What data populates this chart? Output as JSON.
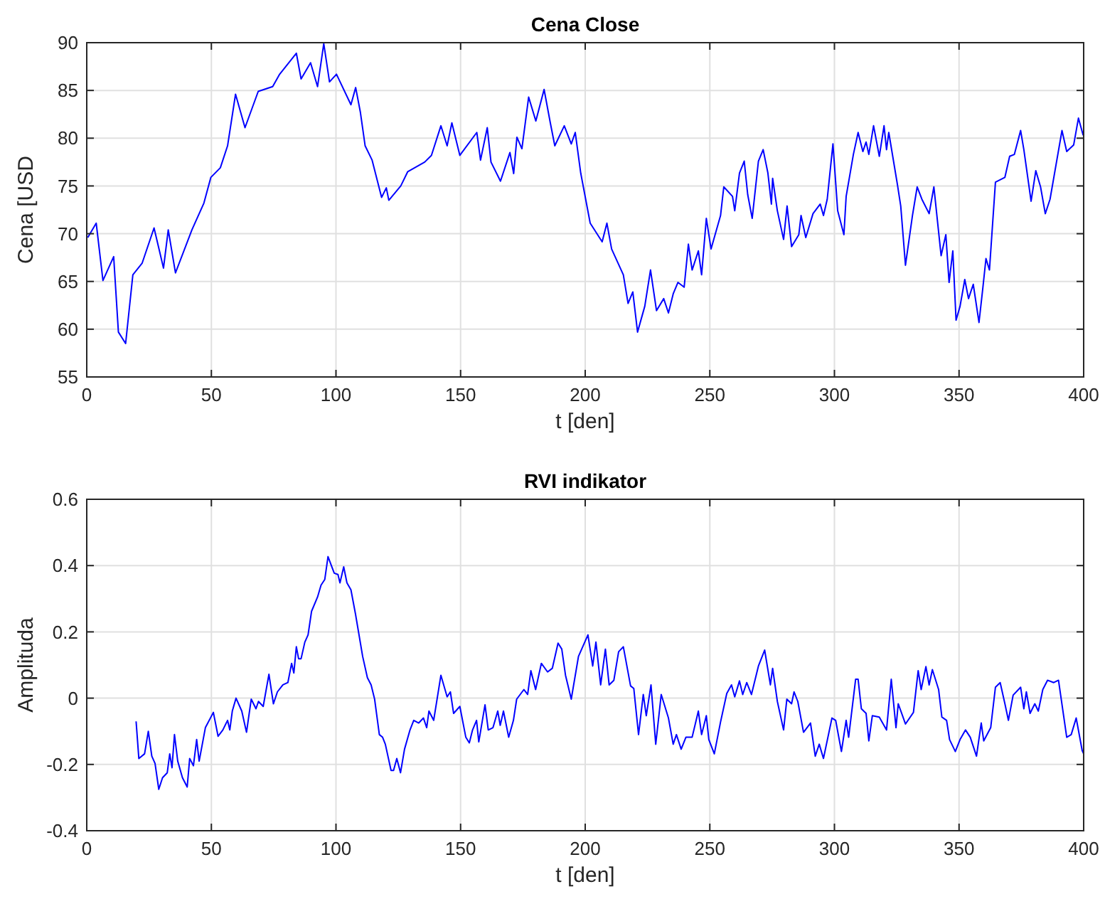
{
  "chart_data": [
    {
      "type": "line",
      "title": "Cena Close",
      "xlabel": "t [den]",
      "ylabel": "Cena [USD",
      "xlim": [
        0,
        400
      ],
      "ylim": [
        55,
        90
      ],
      "xticks": [
        0,
        50,
        100,
        150,
        200,
        250,
        300,
        350,
        400
      ],
      "yticks": [
        55,
        60,
        65,
        70,
        75,
        80,
        85,
        90
      ],
      "grid": true,
      "series": [
        {
          "color": "#0000ff",
          "x": [
            0.4,
            3.8,
            6.5,
            10.8,
            12.7,
            15.6,
            18.5,
            22.2,
            27,
            30.8,
            32.7,
            35.6,
            42.2,
            47,
            49.8,
            53.6,
            56.5,
            59.7,
            63.5,
            68.8,
            74.6,
            77.4,
            84.1,
            86,
            89.8,
            92.6,
            95.1,
            97.4,
            100.2,
            106,
            107.9,
            109.8,
            111.7,
            114.5,
            118.3,
            120.2,
            121.2,
            126,
            128.8,
            135.6,
            138.3,
            142.1,
            144.6,
            146.5,
            149.7,
            156.5,
            158,
            160.7,
            162.2,
            166,
            169.8,
            171.3,
            172.6,
            174.6,
            177.3,
            180.2,
            183.5,
            186,
            187.8,
            191.6,
            194.4,
            196,
            198.2,
            202,
            206.8,
            208.7,
            210.6,
            215.3,
            217.2,
            219.1,
            221,
            223.9,
            226.2,
            228.6,
            231.5,
            233.4,
            235.3,
            237.2,
            239.7,
            241.4,
            242.9,
            245.4,
            246.7,
            248.6,
            250.5,
            254.3,
            255.6,
            259.1,
            260,
            261.9,
            263.8,
            265.2,
            267,
            269.5,
            271.4,
            273.3,
            274.7,
            275.2,
            277.1,
            279.6,
            281,
            282.8,
            285.7,
            286.6,
            288.5,
            291.4,
            294.3,
            295.6,
            297.1,
            299.4,
            301.3,
            303.8,
            304.7,
            307.6,
            309.5,
            311.4,
            312.7,
            313.8,
            315.7,
            318,
            319.9,
            320.9,
            321.8,
            325.3,
            326.6,
            328.5,
            331.3,
            333.2,
            335.1,
            338,
            339.9,
            342.8,
            344.7,
            346,
            347.5,
            348.8,
            350.4,
            352.3,
            353.8,
            355.7,
            358,
            359.5,
            360.8,
            362.2,
            364.6,
            368.4,
            370.3,
            372.2,
            374.7,
            376,
            378.9,
            380.8,
            382.7,
            384.6,
            386.5,
            391.3,
            393.2,
            396,
            397.9,
            399.8
          ],
          "values": [
            69.6,
            71.1,
            65.1,
            67.6,
            59.7,
            58.5,
            65.7,
            66.9,
            70.6,
            66.4,
            70.4,
            65.9,
            70.4,
            73.2,
            75.9,
            76.9,
            79.2,
            84.6,
            81.1,
            84.9,
            85.4,
            86.7,
            88.9,
            86.2,
            87.9,
            85.4,
            89.9,
            85.9,
            86.7,
            83.5,
            85.3,
            82.7,
            79.2,
            77.7,
            73.8,
            74.8,
            73.5,
            75,
            76.5,
            77.5,
            78.2,
            81.3,
            79.2,
            81.6,
            78.2,
            80.6,
            77.7,
            81.1,
            77.5,
            75.5,
            78.5,
            76.3,
            80.1,
            78.9,
            84.3,
            81.8,
            85.1,
            81.6,
            79.2,
            81.3,
            79.4,
            80.6,
            76.35,
            71.1,
            69.15,
            71.1,
            68.4,
            65.7,
            62.7,
            63.9,
            59.7,
            62.4,
            66.2,
            61.95,
            63.2,
            61.7,
            63.7,
            64.9,
            64.4,
            68.9,
            66.2,
            68.2,
            65.7,
            71.6,
            68.4,
            71.9,
            74.9,
            73.9,
            72.4,
            76.35,
            77.6,
            74.1,
            71.6,
            77.6,
            78.8,
            76.35,
            73.1,
            75.8,
            72.4,
            69.4,
            72.9,
            68.65,
            69.9,
            71.9,
            69.6,
            72.1,
            73.1,
            71.9,
            73.6,
            79.4,
            72.4,
            69.9,
            73.9,
            78.3,
            80.6,
            78.6,
            79.6,
            78.3,
            81.3,
            78.1,
            81.3,
            78.8,
            80.6,
            75.1,
            72.9,
            66.7,
            71.9,
            74.9,
            73.6,
            72.1,
            74.9,
            67.7,
            69.9,
            64.9,
            68.2,
            60.95,
            62.4,
            65.2,
            63.2,
            64.7,
            60.7,
            64.2,
            67.4,
            66.2,
            75.4,
            75.9,
            78.1,
            78.3,
            80.8,
            78.8,
            73.4,
            76.6,
            74.9,
            72.1,
            73.6,
            80.8,
            78.6,
            79.3,
            82.1,
            80.3
          ]
        }
      ]
    },
    {
      "type": "line",
      "title": "RVI indikator",
      "xlabel": "t [den]",
      "ylabel": "Amplituda",
      "xlim": [
        0,
        400
      ],
      "ylim": [
        -0.4,
        0.6
      ],
      "xticks": [
        0,
        50,
        100,
        150,
        200,
        250,
        300,
        350,
        400
      ],
      "yticks": [
        -0.4,
        -0.2,
        0,
        0.2,
        0.4,
        0.6
      ],
      "grid": true,
      "series": [
        {
          "color": "#0000ff",
          "x": [
            19.8,
            20.9,
            23.2,
            24.7,
            26.1,
            27.4,
            28.9,
            30.4,
            32.3,
            33.3,
            34.2,
            35.2,
            36.5,
            38.4,
            40.3,
            41.3,
            42.8,
            44.1,
            45.1,
            47.6,
            50.8,
            52.7,
            54.6,
            56.5,
            57.4,
            58.4,
            59.9,
            62.2,
            64.1,
            66,
            67.9,
            68.9,
            70.8,
            73.1,
            74.9,
            76.5,
            78.7,
            80.7,
            82.2,
            83.1,
            84.1,
            85,
            86,
            87.5,
            88.8,
            90.2,
            92.6,
            94,
            95.5,
            96.8,
            99.3,
            100.8,
            101.6,
            103.1,
            104.4,
            106,
            107.8,
            110.7,
            112.6,
            114.1,
            115.5,
            117.4,
            118.7,
            119.8,
            122.1,
            123.1,
            124.4,
            125.9,
            127.5,
            129.7,
            131.2,
            133.2,
            135.1,
            136.4,
            137.3,
            139.2,
            142.1,
            144.6,
            145.9,
            147.2,
            149.7,
            152.1,
            153.5,
            154.8,
            156.4,
            157.3,
            159.8,
            161.1,
            163,
            164.9,
            165.9,
            167.2,
            169.3,
            171.2,
            172.5,
            175.4,
            176.9,
            178.2,
            180.1,
            182.4,
            184.9,
            186.8,
            189.1,
            190.6,
            192.1,
            194.4,
            197.3,
            201.1,
            203,
            204.3,
            206.2,
            208.1,
            209.6,
            211.5,
            213.4,
            215.3,
            218.2,
            219.5,
            221.4,
            223.3,
            224.5,
            226.4,
            228.3,
            230.5,
            233.4,
            235.3,
            236.6,
            238.5,
            240.4,
            242.9,
            245.4,
            246.7,
            248.6,
            249.6,
            251.8,
            254.3,
            256.8,
            258.7,
            260,
            261.9,
            263.2,
            264.8,
            266.7,
            269.5,
            272,
            274.3,
            275.2,
            277.1,
            279.6,
            280.9,
            282.8,
            283.8,
            285.3,
            287.6,
            290.4,
            292.3,
            293.9,
            295.6,
            299,
            300.5,
            302.8,
            304.7,
            305.7,
            308.5,
            309.5,
            310.8,
            312.7,
            313.8,
            315.2,
            318,
            320.9,
            322.8,
            324.7,
            325.6,
            328.5,
            331.7,
            333.6,
            334.8,
            336.7,
            338,
            339.3,
            341.8,
            343.1,
            345,
            346.2,
            348.5,
            350.4,
            352.6,
            354.5,
            357,
            358.9,
            359.9,
            362.7,
            364.6,
            366.5,
            368.4,
            369.8,
            371.7,
            374.7,
            376,
            377,
            378.5,
            380.4,
            381.8,
            383.6,
            385.5,
            388,
            389.9,
            393.2,
            395,
            397,
            399.4,
            400
          ],
          "values": [
            -0.07,
            -0.182,
            -0.168,
            -0.1,
            -0.175,
            -0.197,
            -0.275,
            -0.24,
            -0.225,
            -0.168,
            -0.21,
            -0.11,
            -0.19,
            -0.24,
            -0.268,
            -0.182,
            -0.204,
            -0.125,
            -0.19,
            -0.089,
            -0.043,
            -0.115,
            -0.096,
            -0.067,
            -0.096,
            -0.039,
            0,
            -0.039,
            -0.103,
            -0.003,
            -0.032,
            -0.01,
            -0.025,
            0.072,
            -0.017,
            0.019,
            0.04,
            0.047,
            0.105,
            0.076,
            0.155,
            0.119,
            0.119,
            0.169,
            0.191,
            0.262,
            0.305,
            0.341,
            0.358,
            0.427,
            0.377,
            0.373,
            0.348,
            0.396,
            0.348,
            0.327,
            0.255,
            0.126,
            0.062,
            0.04,
            -0.003,
            -0.11,
            -0.118,
            -0.139,
            -0.218,
            -0.218,
            -0.182,
            -0.225,
            -0.154,
            -0.096,
            -0.067,
            -0.075,
            -0.06,
            -0.089,
            -0.039,
            -0.067,
            0.069,
            0.004,
            0.019,
            -0.046,
            -0.025,
            -0.118,
            -0.135,
            -0.096,
            -0.067,
            -0.132,
            -0.02,
            -0.096,
            -0.089,
            -0.039,
            -0.082,
            -0.039,
            -0.118,
            -0.067,
            -0.003,
            0.026,
            0.011,
            0.083,
            0.026,
            0.105,
            0.079,
            0.09,
            0.166,
            0.148,
            0.069,
            -0.003,
            0.126,
            0.191,
            0.097,
            0.169,
            0.04,
            0.148,
            0.04,
            0.054,
            0.14,
            0.155,
            0.037,
            0.029,
            -0.11,
            0.011,
            -0.053,
            0.04,
            -0.139,
            0.011,
            -0.06,
            -0.139,
            -0.11,
            -0.154,
            -0.118,
            -0.118,
            -0.039,
            -0.11,
            -0.053,
            -0.125,
            -0.168,
            -0.072,
            0.014,
            0.04,
            0.004,
            0.052,
            0.011,
            0.047,
            0.011,
            0.097,
            0.145,
            0.04,
            0.09,
            -0.01,
            -0.096,
            -0.003,
            -0.017,
            0.019,
            -0.01,
            -0.103,
            -0.075,
            -0.175,
            -0.139,
            -0.182,
            -0.06,
            -0.067,
            -0.161,
            -0.067,
            -0.118,
            0.057,
            0.057,
            -0.032,
            -0.046,
            -0.129,
            -0.053,
            -0.057,
            -0.096,
            0.057,
            -0.089,
            -0.017,
            -0.078,
            -0.043,
            0.083,
            0.026,
            0.095,
            0.04,
            0.086,
            0.026,
            -0.057,
            -0.067,
            -0.125,
            -0.161,
            -0.125,
            -0.096,
            -0.118,
            -0.175,
            -0.075,
            -0.129,
            -0.089,
            0.033,
            0.047,
            -0.017,
            -0.067,
            0.009,
            0.033,
            -0.032,
            0.019,
            -0.046,
            -0.017,
            -0.039,
            0.026,
            0.054,
            0.047,
            0.054,
            -0.118,
            -0.11,
            -0.06,
            -0.158,
            -0.168
          ]
        }
      ]
    }
  ]
}
